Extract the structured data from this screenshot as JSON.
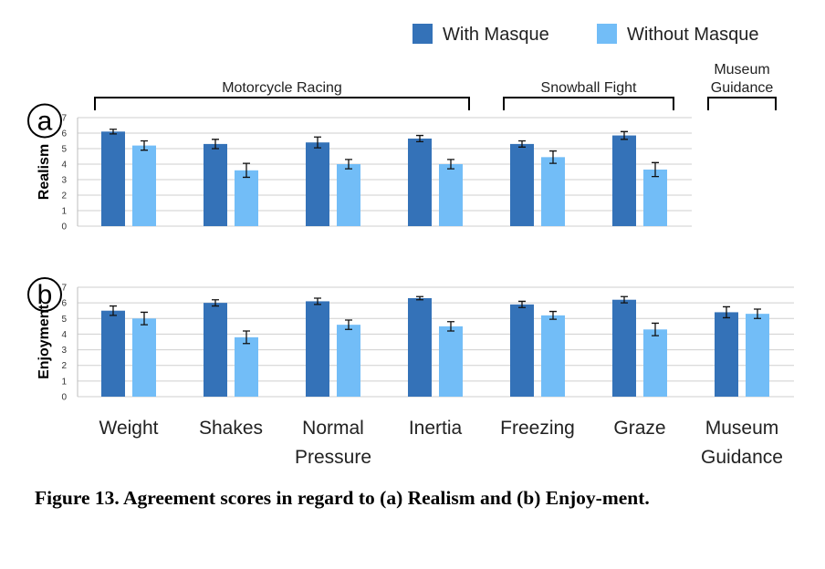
{
  "chart_data": {
    "type": "bar",
    "categories": [
      "Weight",
      "Shakes",
      "Normal Pressure",
      "Inertia",
      "Freezing",
      "Graze",
      "Museum Guidance"
    ],
    "category_lines": [
      [
        "Weight"
      ],
      [
        "Shakes"
      ],
      [
        "Normal",
        "Pressure"
      ],
      [
        "Inertia"
      ],
      [
        "Freezing"
      ],
      [
        "Graze"
      ],
      [
        "Museum",
        "Guidance"
      ]
    ],
    "legend": {
      "position": "top-right",
      "entries": [
        {
          "name": "With Masque",
          "color": "#3472b8"
        },
        {
          "name": "Without Masque",
          "color": "#72bdf7"
        }
      ]
    },
    "groups": [
      {
        "label": "Motorcycle Racing",
        "label_lines": [
          "Motorcycle Racing"
        ],
        "from": 0,
        "to": 3
      },
      {
        "label": "Snowball Fight",
        "label_lines": [
          "Snowball Fight"
        ],
        "from": 4,
        "to": 5
      },
      {
        "label": "Museum Guidance",
        "label_lines": [
          "Museum",
          "Guidance"
        ],
        "from": 6,
        "to": 6
      }
    ],
    "panels": [
      {
        "letter": "a",
        "ylabel": "Realism",
        "ylim": [
          0,
          7
        ],
        "yticks": [
          0,
          1,
          2,
          3,
          4,
          5,
          6,
          7
        ],
        "grid": true,
        "series": [
          {
            "name": "With Masque",
            "values": [
              6.1,
              5.3,
              5.4,
              5.65,
              5.3,
              5.85,
              null
            ],
            "errors": [
              0.15,
              0.3,
              0.35,
              0.2,
              0.2,
              0.25,
              null
            ]
          },
          {
            "name": "Without Masque",
            "values": [
              5.2,
              3.6,
              4.0,
              4.0,
              4.45,
              3.65,
              null
            ],
            "errors": [
              0.3,
              0.45,
              0.3,
              0.3,
              0.4,
              0.45,
              null
            ]
          }
        ]
      },
      {
        "letter": "b",
        "ylabel": "Enjoyment",
        "ylim": [
          0,
          7
        ],
        "yticks": [
          0,
          1,
          2,
          3,
          4,
          5,
          6,
          7
        ],
        "grid": true,
        "series": [
          {
            "name": "With Masque",
            "values": [
              5.5,
              6.0,
              6.1,
              6.3,
              5.9,
              6.2,
              5.4
            ],
            "errors": [
              0.3,
              0.2,
              0.2,
              0.1,
              0.2,
              0.2,
              0.35
            ]
          },
          {
            "name": "Without Masque",
            "values": [
              5.0,
              3.8,
              4.6,
              4.5,
              5.2,
              4.3,
              5.3
            ],
            "errors": [
              0.4,
              0.4,
              0.3,
              0.3,
              0.25,
              0.4,
              0.3
            ]
          }
        ]
      }
    ]
  },
  "caption": "Figure 13.  Agreement scores in regard to (a) Realism and (b) Enjoy-ment."
}
